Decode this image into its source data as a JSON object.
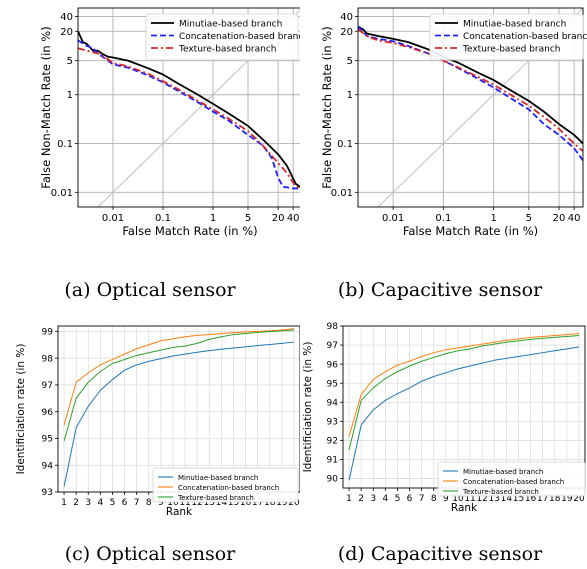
{
  "captions": {
    "a": "(a) Optical sensor",
    "b": "(b) Capacitive sensor",
    "c": "(c) Optical sensor",
    "d": "(d) Capacitive sensor"
  },
  "chart_data": [
    {
      "id": "a",
      "type": "line",
      "xlabel": "False Match Rate (in %)",
      "ylabel": "False Non-Match Rate (in %)",
      "xscale": "log",
      "yscale": "log",
      "xlim": [
        0.002,
        60
      ],
      "ylim": [
        0.005,
        60
      ],
      "xticks": [
        "0.01",
        "0.1",
        "1",
        "5",
        "20",
        "40"
      ],
      "yticks": [
        "0.01",
        "0.1",
        "1",
        "5",
        "20",
        "40"
      ],
      "grid": true,
      "legend": "top-right",
      "diagonal": true,
      "series": [
        {
          "name": "Minutiae-based branch",
          "color": "#000000",
          "dash": "solid",
          "points": [
            [
              0.002,
              20
            ],
            [
              0.0025,
              12
            ],
            [
              0.003,
              11
            ],
            [
              0.004,
              8
            ],
            [
              0.005,
              8
            ],
            [
              0.006,
              7
            ],
            [
              0.008,
              6
            ],
            [
              0.01,
              5.8
            ],
            [
              0.02,
              5
            ],
            [
              0.05,
              3.5
            ],
            [
              0.1,
              2.6
            ],
            [
              0.2,
              1.7
            ],
            [
              0.5,
              1.0
            ],
            [
              1,
              0.65
            ],
            [
              2,
              0.42
            ],
            [
              5,
              0.23
            ],
            [
              10,
              0.12
            ],
            [
              20,
              0.06
            ],
            [
              30,
              0.035
            ],
            [
              45,
              0.015
            ],
            [
              60,
              0.012
            ]
          ]
        },
        {
          "name": "Concatenation-based branch",
          "color": "#1f1fff",
          "dash": "dashed",
          "points": [
            [
              0.002,
              13
            ],
            [
              0.003,
              10
            ],
            [
              0.004,
              9
            ],
            [
              0.005,
              7
            ],
            [
              0.008,
              5
            ],
            [
              0.01,
              4.2
            ],
            [
              0.02,
              3.6
            ],
            [
              0.05,
              2.5
            ],
            [
              0.1,
              1.8
            ],
            [
              0.2,
              1.2
            ],
            [
              0.5,
              0.7
            ],
            [
              1,
              0.45
            ],
            [
              2,
              0.3
            ],
            [
              5,
              0.15
            ],
            [
              10,
              0.09
            ],
            [
              15,
              0.05
            ],
            [
              20,
              0.02
            ],
            [
              25,
              0.013
            ],
            [
              40,
              0.012
            ],
            [
              60,
              0.012
            ]
          ]
        },
        {
          "name": "Texture-based branch",
          "color": "#d62728",
          "dash": "dashdot",
          "points": [
            [
              0.002,
              9
            ],
            [
              0.003,
              8
            ],
            [
              0.005,
              7
            ],
            [
              0.008,
              5.3
            ],
            [
              0.01,
              4.5
            ],
            [
              0.02,
              3.8
            ],
            [
              0.05,
              2.7
            ],
            [
              0.1,
              1.9
            ],
            [
              0.2,
              1.3
            ],
            [
              0.5,
              0.75
            ],
            [
              1,
              0.5
            ],
            [
              2,
              0.33
            ],
            [
              5,
              0.18
            ],
            [
              10,
              0.09
            ],
            [
              20,
              0.04
            ],
            [
              30,
              0.025
            ],
            [
              45,
              0.013
            ],
            [
              60,
              0.012
            ]
          ]
        }
      ]
    },
    {
      "id": "b",
      "type": "line",
      "xlabel": "False Match Rate (in %)",
      "ylabel": "False Non-Match Rate (in %)",
      "xscale": "log",
      "yscale": "log",
      "xlim": [
        0.002,
        60
      ],
      "ylim": [
        0.005,
        60
      ],
      "xticks": [
        "0.01",
        "0.1",
        "1",
        "5",
        "20",
        "40"
      ],
      "yticks": [
        "0.01",
        "0.1",
        "1",
        "5",
        "20",
        "40"
      ],
      "grid": true,
      "legend": "top-right",
      "diagonal": true,
      "series": [
        {
          "name": "Minutiae-based branch",
          "color": "#000000",
          "dash": "solid",
          "points": [
            [
              0.002,
              25
            ],
            [
              0.0025,
              22
            ],
            [
              0.003,
              18
            ],
            [
              0.005,
              16
            ],
            [
              0.01,
              14
            ],
            [
              0.02,
              12
            ],
            [
              0.05,
              8.5
            ],
            [
              0.1,
              6
            ],
            [
              0.2,
              4.5
            ],
            [
              0.5,
              2.8
            ],
            [
              1,
              2
            ],
            [
              2,
              1.3
            ],
            [
              5,
              0.75
            ],
            [
              10,
              0.45
            ],
            [
              20,
              0.25
            ],
            [
              40,
              0.15
            ],
            [
              60,
              0.1
            ]
          ]
        },
        {
          "name": "Concatenation-based branch",
          "color": "#1f1fff",
          "dash": "dashed",
          "points": [
            [
              0.002,
              25
            ],
            [
              0.0025,
              20
            ],
            [
              0.003,
              16
            ],
            [
              0.005,
              14
            ],
            [
              0.01,
              12.5
            ],
            [
              0.02,
              10
            ],
            [
              0.05,
              7
            ],
            [
              0.1,
              5
            ],
            [
              0.2,
              3.5
            ],
            [
              0.5,
              2.1
            ],
            [
              1,
              1.4
            ],
            [
              2,
              0.9
            ],
            [
              5,
              0.5
            ],
            [
              10,
              0.25
            ],
            [
              20,
              0.15
            ],
            [
              40,
              0.08
            ],
            [
              60,
              0.045
            ]
          ]
        },
        {
          "name": "Texture-based branch",
          "color": "#d62728",
          "dash": "dashdot",
          "points": [
            [
              0.002,
              22
            ],
            [
              0.003,
              16
            ],
            [
              0.005,
              13
            ],
            [
              0.01,
              11.5
            ],
            [
              0.02,
              9.5
            ],
            [
              0.05,
              7
            ],
            [
              0.1,
              5
            ],
            [
              0.2,
              3.6
            ],
            [
              0.5,
              2.3
            ],
            [
              1,
              1.6
            ],
            [
              2,
              1.05
            ],
            [
              5,
              0.6
            ],
            [
              10,
              0.35
            ],
            [
              20,
              0.2
            ],
            [
              40,
              0.1
            ],
            [
              60,
              0.07
            ]
          ]
        }
      ]
    },
    {
      "id": "c",
      "type": "line",
      "xlabel": "Rank",
      "ylabel": "Identificiation rate (in %)",
      "xlim": [
        0.5,
        20.5
      ],
      "ylim": [
        93,
        99.2
      ],
      "xticks": [
        1,
        2,
        3,
        4,
        5,
        6,
        7,
        8,
        9,
        10,
        11,
        12,
        13,
        14,
        15,
        16,
        17,
        18,
        19,
        20
      ],
      "yticks": [
        93,
        94,
        95,
        96,
        97,
        98,
        99
      ],
      "grid": true,
      "legend": "bottom-right",
      "series": [
        {
          "name": "Minutiae-based branch",
          "color": "#1f77b4",
          "values": [
            93.2,
            95.4,
            96.2,
            96.8,
            97.2,
            97.55,
            97.75,
            97.88,
            97.98,
            98.08,
            98.15,
            98.22,
            98.28,
            98.33,
            98.38,
            98.42,
            98.47,
            98.51,
            98.55,
            98.6
          ]
        },
        {
          "name": "Concatenation-based branch",
          "color": "#ff7f0e",
          "values": [
            95.5,
            97.1,
            97.45,
            97.75,
            97.95,
            98.15,
            98.35,
            98.5,
            98.65,
            98.72,
            98.8,
            98.85,
            98.88,
            98.92,
            98.95,
            98.98,
            99.0,
            99.02,
            99.05,
            99.1
          ]
        },
        {
          "name": "Texture-based branch",
          "color": "#2ca02c",
          "values": [
            94.9,
            96.5,
            97.1,
            97.5,
            97.8,
            97.95,
            98.1,
            98.2,
            98.3,
            98.4,
            98.45,
            98.55,
            98.7,
            98.8,
            98.88,
            98.92,
            98.96,
            98.99,
            99.02,
            99.05
          ]
        }
      ]
    },
    {
      "id": "d",
      "type": "line",
      "xlabel": "Rank",
      "ylabel": "Identificiation rate (in %)",
      "xlim": [
        0.5,
        20.5
      ],
      "ylim": [
        89.5,
        98
      ],
      "xticks": [
        1,
        2,
        3,
        4,
        5,
        6,
        7,
        8,
        9,
        10,
        11,
        12,
        13,
        14,
        15,
        16,
        17,
        18,
        19,
        20
      ],
      "yticks": [
        90,
        91,
        92,
        93,
        94,
        95,
        96,
        97,
        98
      ],
      "grid": true,
      "legend": "bottom-right",
      "series": [
        {
          "name": "Minutiae-based branch",
          "color": "#1f77b4",
          "values": [
            89.9,
            92.8,
            93.6,
            94.1,
            94.45,
            94.75,
            95.1,
            95.35,
            95.55,
            95.75,
            95.9,
            96.05,
            96.2,
            96.3,
            96.4,
            96.5,
            96.6,
            96.7,
            96.8,
            96.9
          ]
        },
        {
          "name": "Concatenation-based branch",
          "color": "#ff7f0e",
          "values": [
            92.2,
            94.4,
            95.2,
            95.6,
            95.95,
            96.15,
            96.4,
            96.6,
            96.75,
            96.85,
            96.95,
            97.05,
            97.15,
            97.25,
            97.32,
            97.4,
            97.45,
            97.5,
            97.55,
            97.6
          ]
        },
        {
          "name": "Texture-based branch",
          "color": "#2ca02c",
          "values": [
            91.5,
            94.1,
            94.75,
            95.25,
            95.6,
            95.9,
            96.15,
            96.35,
            96.55,
            96.7,
            96.8,
            96.95,
            97.05,
            97.15,
            97.22,
            97.3,
            97.35,
            97.4,
            97.45,
            97.5
          ]
        }
      ]
    }
  ]
}
